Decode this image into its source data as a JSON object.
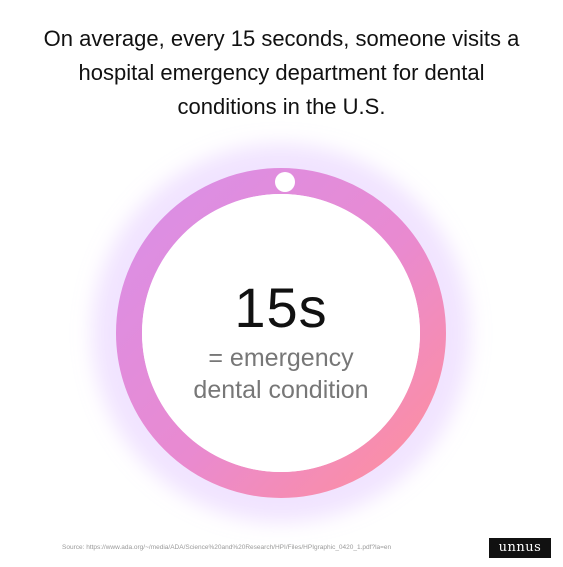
{
  "headline": {
    "line1": "On average, every 15 seconds, someone visits a",
    "line2": "hospital emergency department for dental",
    "line3": "conditions in the U.S."
  },
  "stat": {
    "value": "15s",
    "caption_line1": "= emergency",
    "caption_line2": "dental condition"
  },
  "source": "Source: https://www.ada.org/~/media/ADA/Science%20and%20Research/HPI/Files/HPIgraphic_0420_1.pdf?la=en",
  "logo": "unnus",
  "colors": {
    "ring_start": "#d98fe8",
    "ring_mid": "#e98ad0",
    "ring_end": "#ff8f9c",
    "glow": "#c99cff",
    "marker": "#ffffff"
  }
}
